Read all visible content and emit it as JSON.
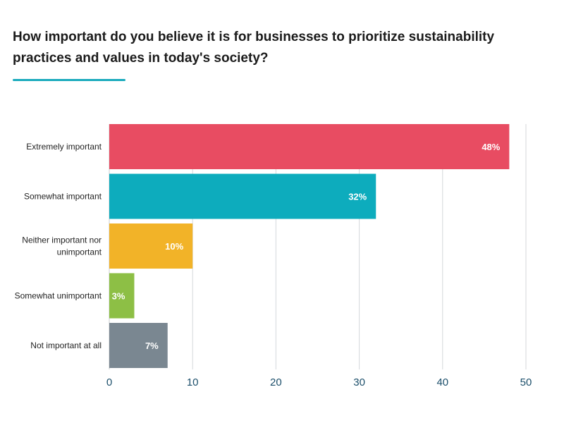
{
  "chart_data": {
    "type": "bar",
    "orientation": "horizontal",
    "title": "How important do you believe it is for businesses to prioritize sustainability practices and values in today's society?",
    "categories": [
      "Extremely important",
      "Somewhat important",
      "Neither important nor unimportant",
      "Somewhat unimportant",
      "Not important at all"
    ],
    "category_lines": [
      [
        "Extremely important"
      ],
      [
        "Somewhat important"
      ],
      [
        "Neither important nor",
        "unimportant"
      ],
      [
        "Somewhat unimportant"
      ],
      [
        "Not important at all"
      ]
    ],
    "values": [
      48,
      32,
      10,
      3,
      7
    ],
    "value_labels": [
      "48%",
      "32%",
      "10%",
      "3%",
      "7%"
    ],
    "colors": [
      "#e84c62",
      "#0dacbd",
      "#f2b328",
      "#8dbf45",
      "#7a8791"
    ],
    "xlim": [
      0,
      50
    ],
    "xticks": [
      "0",
      "10",
      "20",
      "30",
      "40",
      "50"
    ],
    "grid": true,
    "accent_color": "#1aabbd"
  }
}
